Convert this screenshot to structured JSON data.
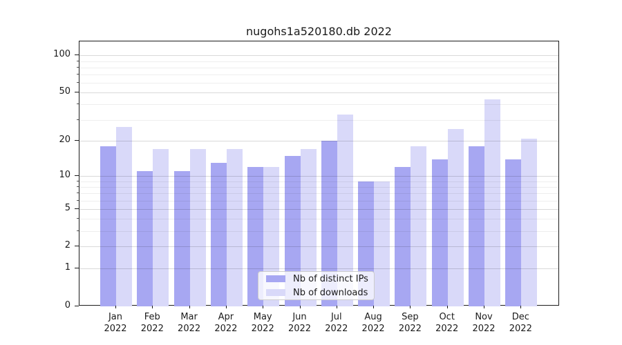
{
  "chart_data": {
    "type": "bar",
    "title": "nugohs1a520180.db 2022",
    "categories": [
      "Jan",
      "Feb",
      "Mar",
      "Apr",
      "May",
      "Jun",
      "Jul",
      "Aug",
      "Sep",
      "Oct",
      "Nov",
      "Dec"
    ],
    "x_year": "2022",
    "series": [
      {
        "name": "Nb of distinct IPs",
        "color": "#a7a7f2",
        "values": [
          18,
          11,
          11,
          13,
          12,
          15,
          20,
          9,
          12,
          14,
          18,
          14
        ]
      },
      {
        "name": "Nb of downloads",
        "color": "#d9d9f9",
        "values": [
          26,
          17,
          17,
          17,
          12,
          17,
          33,
          9,
          18,
          25,
          44,
          21
        ]
      }
    ],
    "yscale": "log1p",
    "ylim": [
      0,
      130
    ],
    "yticks": [
      0,
      1,
      2,
      5,
      10,
      20,
      50,
      100
    ],
    "minor_yticks": [
      3,
      4,
      6,
      7,
      8,
      9,
      30,
      40,
      60,
      70,
      80,
      90
    ],
    "grid": "horizontal",
    "legend_position": "lower-center-inside"
  },
  "colors": {
    "background": "#ffffff",
    "bar_distinct_ips": "#a7a7f2",
    "bar_downloads": "#d9d9f9",
    "grid_major": "#d9d9d9",
    "grid_minor": "#eeeeee",
    "spine": "#1a1a1a",
    "text": "#1a1a1a"
  }
}
